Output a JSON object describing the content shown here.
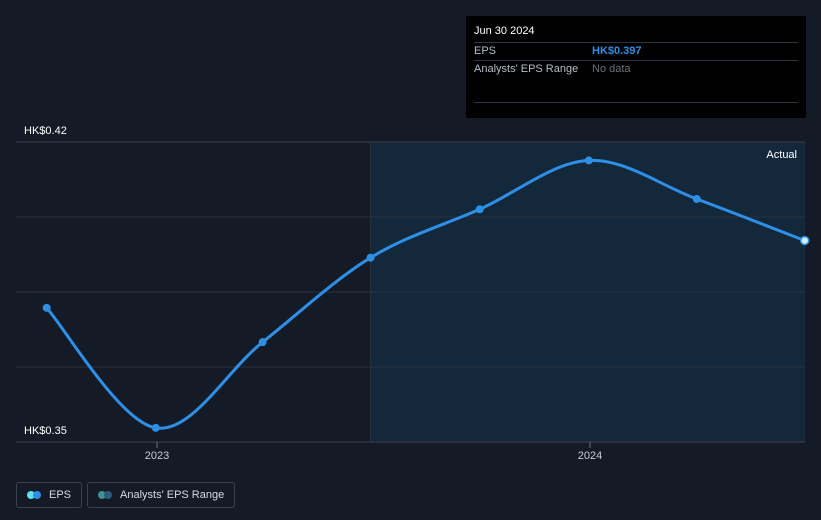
{
  "tooltip": {
    "date": "Jun 30 2024",
    "eps_label": "EPS",
    "eps_value": "HK$0.397",
    "range_label": "Analysts' EPS Range",
    "range_value": "No data"
  },
  "legend": {
    "eps_label": "EPS",
    "range_label": "Analysts' EPS Range"
  },
  "colors": {
    "background": "#151b26",
    "actual_region": "#14283c",
    "eps_line": "#2e8fe6",
    "eps_legend_dot_a": "#5ee0f0",
    "eps_legend_dot_b": "#2e8fe6",
    "range_legend_dot_a": "#3f8f95",
    "range_legend_dot_b": "#2e5c7a"
  },
  "chart_data": {
    "type": "line",
    "title": "",
    "xlabel": "",
    "ylabel": "",
    "x_ticks": [
      "2023",
      "2024"
    ],
    "y_tick_labels": [
      "HK$0.42",
      "HK$0.35"
    ],
    "ylim": [
      0.35,
      0.42
    ],
    "region_label": "Actual",
    "series": [
      {
        "name": "EPS",
        "x": [
          "2022-09-30",
          "2022-12-31",
          "2023-03-31",
          "2023-06-30",
          "2023-09-30",
          "2023-12-31",
          "2024-03-31",
          "2024-06-30"
        ],
        "y": [
          0.3813,
          0.3533,
          0.3733,
          0.393,
          0.4043,
          0.4157,
          0.4067,
          0.397
        ]
      }
    ],
    "grid": true
  }
}
